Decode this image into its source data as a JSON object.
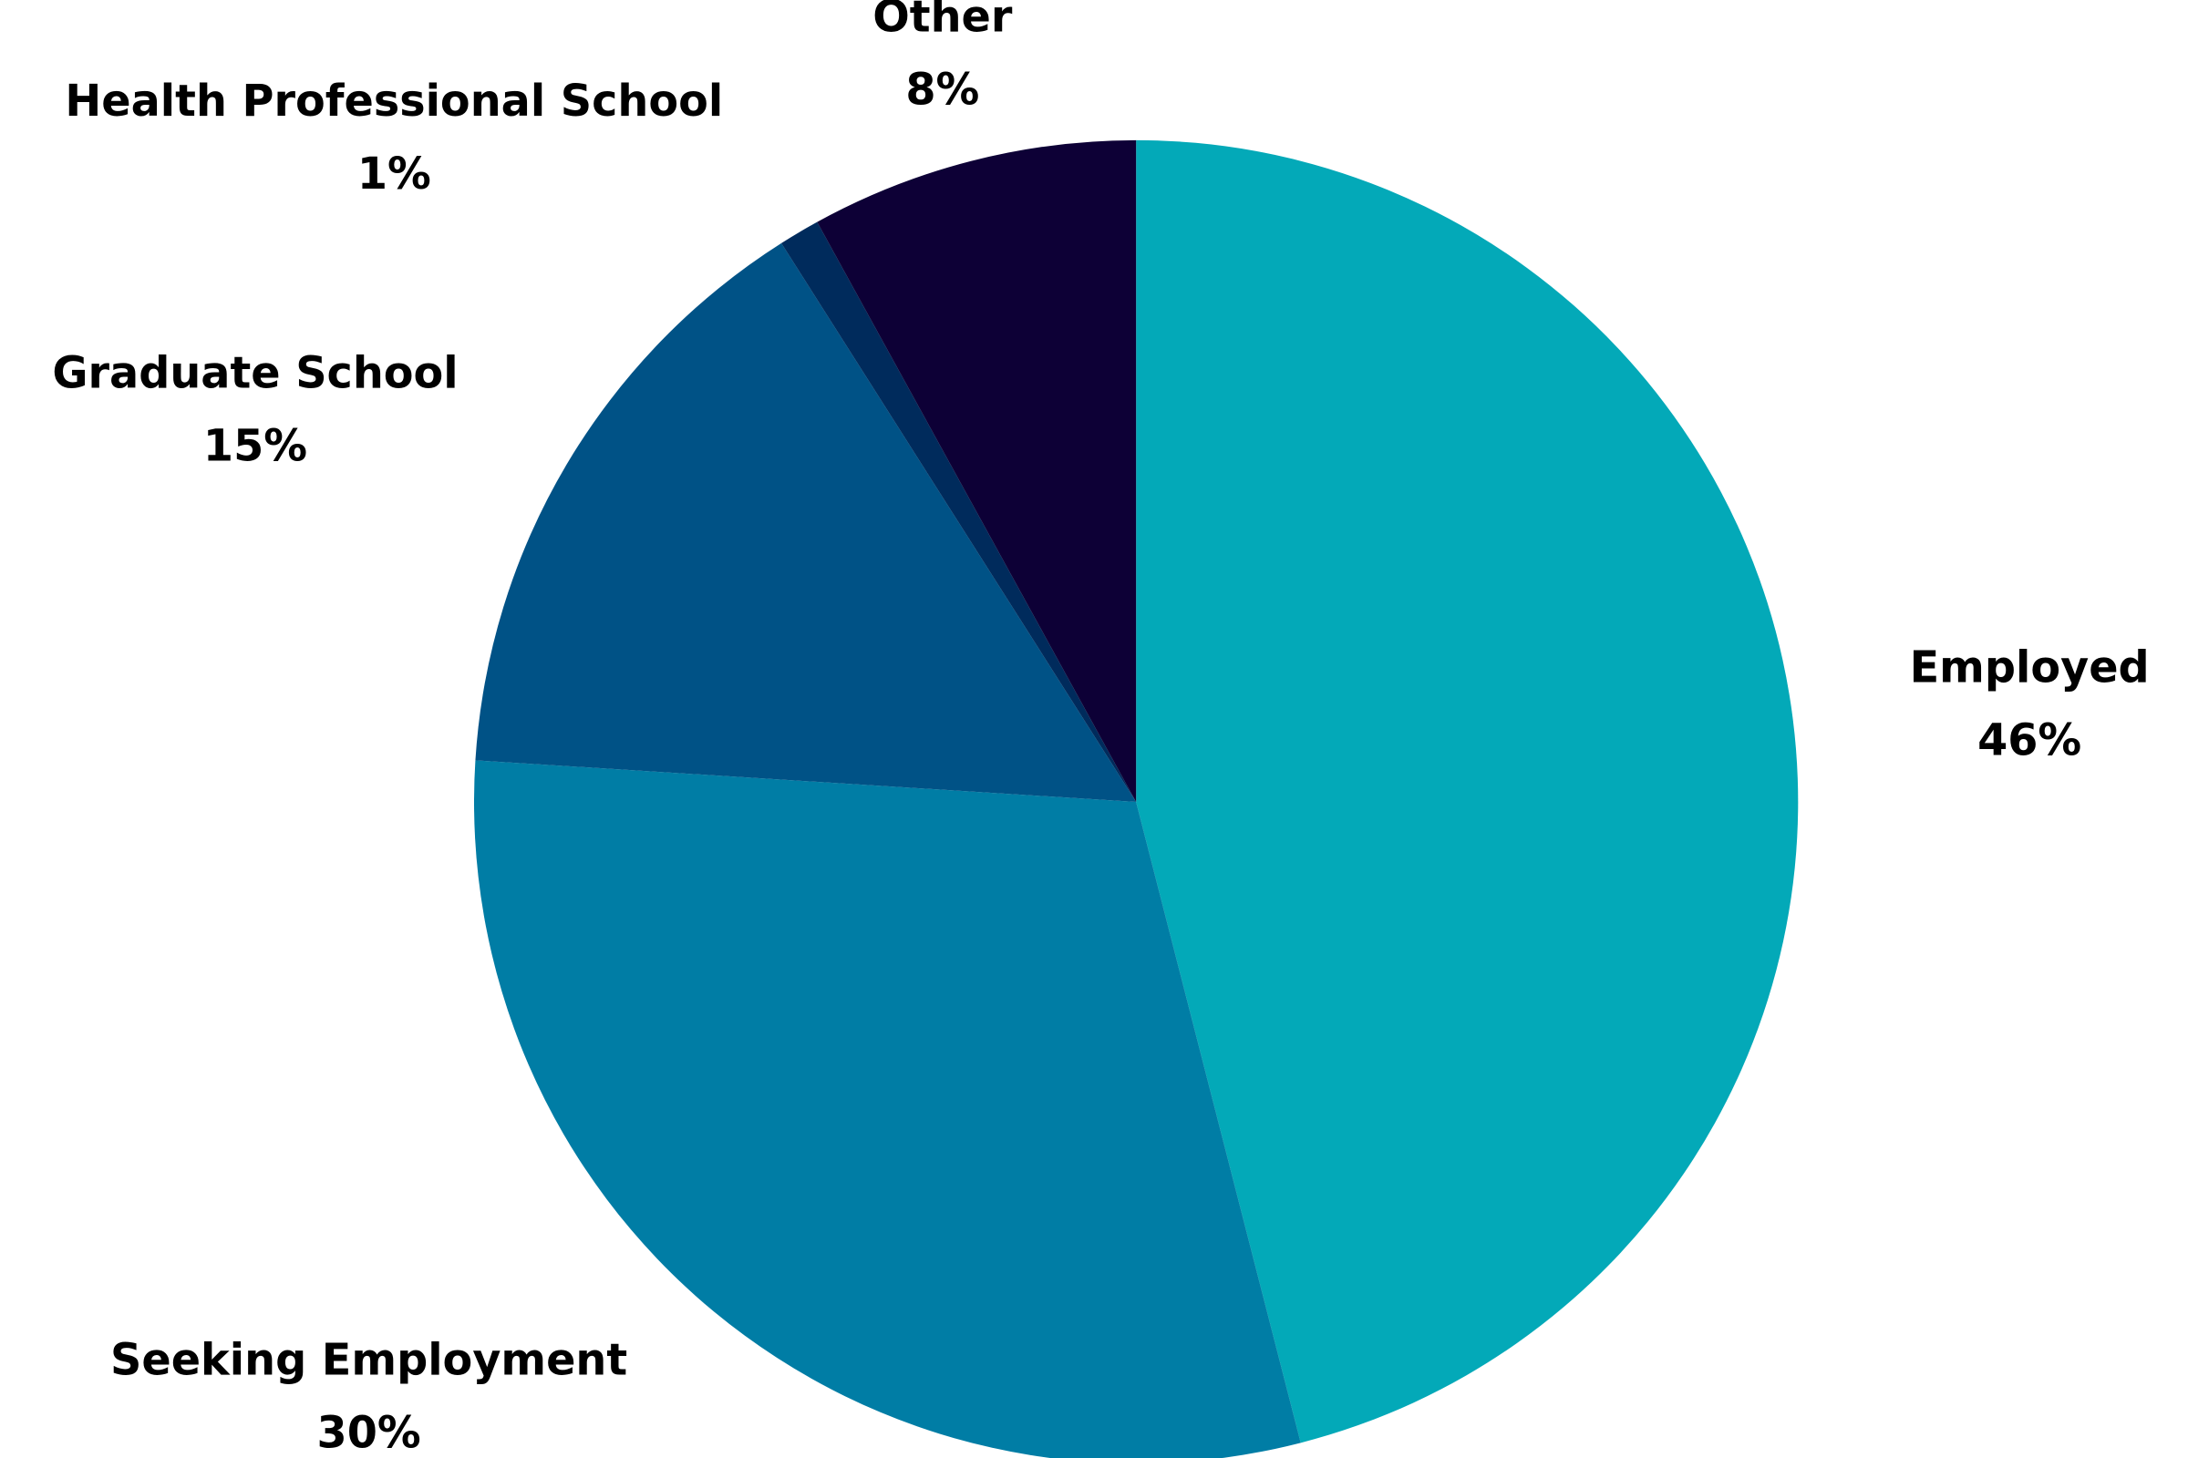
{
  "chart_data": {
    "type": "pie",
    "categories": [
      "Employed",
      "Seeking Employment",
      "Graduate School",
      "Health Professional School",
      "Other"
    ],
    "values": [
      46,
      30,
      15,
      1,
      8
    ],
    "value_labels": [
      "46%",
      "30%",
      "15%",
      "1%",
      "8%"
    ],
    "colors": [
      "#03a9b8",
      "#007da5",
      "#005286",
      "#002b5c",
      "#0d0036"
    ]
  }
}
